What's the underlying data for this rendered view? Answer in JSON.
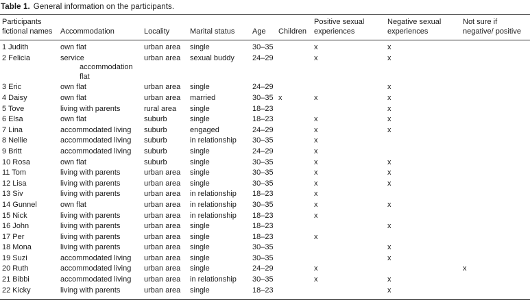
{
  "table": {
    "title_label": "Table 1.",
    "title_text": "General information on the participants.",
    "columns": [
      {
        "key": "name",
        "label": "Participants\nfictional names"
      },
      {
        "key": "accommodation",
        "label": "Accommodation"
      },
      {
        "key": "locality",
        "label": "Locality"
      },
      {
        "key": "marital",
        "label": "Marital status"
      },
      {
        "key": "age",
        "label": "Age"
      },
      {
        "key": "children",
        "label": "Children"
      },
      {
        "key": "positive",
        "label": "Positive sexual\nexperiences"
      },
      {
        "key": "negative",
        "label": "Negative sexual\nexperiences"
      },
      {
        "key": "notsure",
        "label": "Not sure if\nnegative/ positive"
      }
    ],
    "rows": [
      {
        "name": "1 Judith",
        "accommodation": "own flat",
        "locality": "urban area",
        "marital": "single",
        "age": "30–35",
        "children": "",
        "positive": "x",
        "negative": "x",
        "notsure": ""
      },
      {
        "name": "2 Felicia",
        "accommodation": "service\naccommodation flat",
        "locality": "urban area",
        "marital": "sexual buddy",
        "age": "24–29",
        "children": "",
        "positive": "x",
        "negative": "x",
        "notsure": ""
      },
      {
        "name": "3 Eric",
        "accommodation": "own flat",
        "locality": "urban area",
        "marital": "single",
        "age": "24–29",
        "children": "",
        "positive": "",
        "negative": "x",
        "notsure": ""
      },
      {
        "name": "4 Daisy",
        "accommodation": "own flat",
        "locality": "urban area",
        "marital": "married",
        "age": "30–35",
        "children": "x",
        "positive": "x",
        "negative": "x",
        "notsure": ""
      },
      {
        "name": "5 Tove",
        "accommodation": "living with parents",
        "locality": "rural area",
        "marital": "single",
        "age": "18–23",
        "children": "",
        "positive": "",
        "negative": "x",
        "notsure": ""
      },
      {
        "name": "6 Elsa",
        "accommodation": "own flat",
        "locality": "suburb",
        "marital": "single",
        "age": "18–23",
        "children": "",
        "positive": "x",
        "negative": "x",
        "notsure": ""
      },
      {
        "name": "7 Lina",
        "accommodation": "accommodated living",
        "locality": "suburb",
        "marital": "engaged",
        "age": "24–29",
        "children": "",
        "positive": "x",
        "negative": "x",
        "notsure": ""
      },
      {
        "name": "8 Nellie",
        "accommodation": "accommodated living",
        "locality": "suburb",
        "marital": "in relationship",
        "age": "30–35",
        "children": "",
        "positive": "x",
        "negative": "",
        "notsure": ""
      },
      {
        "name": "9 Britt",
        "accommodation": "accommodated living",
        "locality": "suburb",
        "marital": "single",
        "age": "24–29",
        "children": "",
        "positive": "x",
        "negative": "",
        "notsure": ""
      },
      {
        "name": "10 Rosa",
        "accommodation": "own flat",
        "locality": "suburb",
        "marital": "single",
        "age": "30–35",
        "children": "",
        "positive": "x",
        "negative": "x",
        "notsure": ""
      },
      {
        "name": "11 Tom",
        "accommodation": "living with parents",
        "locality": "urban area",
        "marital": "single",
        "age": "30–35",
        "children": "",
        "positive": "x",
        "negative": "x",
        "notsure": ""
      },
      {
        "name": "12 Lisa",
        "accommodation": "living with parents",
        "locality": "urban area",
        "marital": "single",
        "age": "30–35",
        "children": "",
        "positive": "x",
        "negative": "x",
        "notsure": ""
      },
      {
        "name": "13 Siv",
        "accommodation": "living with parents",
        "locality": "urban area",
        "marital": "in relationship",
        "age": "18–23",
        "children": "",
        "positive": "x",
        "negative": "",
        "notsure": ""
      },
      {
        "name": "14 Gunnel",
        "accommodation": "own flat",
        "locality": "urban area",
        "marital": "in relationship",
        "age": "30–35",
        "children": "",
        "positive": "x",
        "negative": "x",
        "notsure": ""
      },
      {
        "name": "15 Nick",
        "accommodation": "living with parents",
        "locality": "urban area",
        "marital": "in relationship",
        "age": "18–23",
        "children": "",
        "positive": "x",
        "negative": "",
        "notsure": ""
      },
      {
        "name": "16 John",
        "accommodation": "living with parents",
        "locality": "urban area",
        "marital": "single",
        "age": "18–23",
        "children": "",
        "positive": "",
        "negative": "x",
        "notsure": ""
      },
      {
        "name": "17 Per",
        "accommodation": "living with parents",
        "locality": "urban area",
        "marital": "single",
        "age": "18–23",
        "children": "",
        "positive": "x",
        "negative": "",
        "notsure": ""
      },
      {
        "name": "18 Mona",
        "accommodation": "living with parents",
        "locality": "urban area",
        "marital": "single",
        "age": "30–35",
        "children": "",
        "positive": "",
        "negative": "x",
        "notsure": ""
      },
      {
        "name": "19 Suzi",
        "accommodation": "accommodated living",
        "locality": "urban area",
        "marital": "single",
        "age": "30–35",
        "children": "",
        "positive": "",
        "negative": "x",
        "notsure": ""
      },
      {
        "name": "20 Ruth",
        "accommodation": "accommodated living",
        "locality": "urban area",
        "marital": "single",
        "age": "24–29",
        "children": "",
        "positive": "x",
        "negative": "",
        "notsure": "x"
      },
      {
        "name": "21 Bibbi",
        "accommodation": "accommodated living",
        "locality": "urban area",
        "marital": "in relationship",
        "age": "30–35",
        "children": "",
        "positive": "x",
        "negative": "x",
        "notsure": ""
      },
      {
        "name": "22 Kicky",
        "accommodation": "living with parents",
        "locality": "urban area",
        "marital": "single",
        "age": "18–23",
        "children": "",
        "positive": "",
        "negative": "x",
        "notsure": ""
      }
    ]
  }
}
